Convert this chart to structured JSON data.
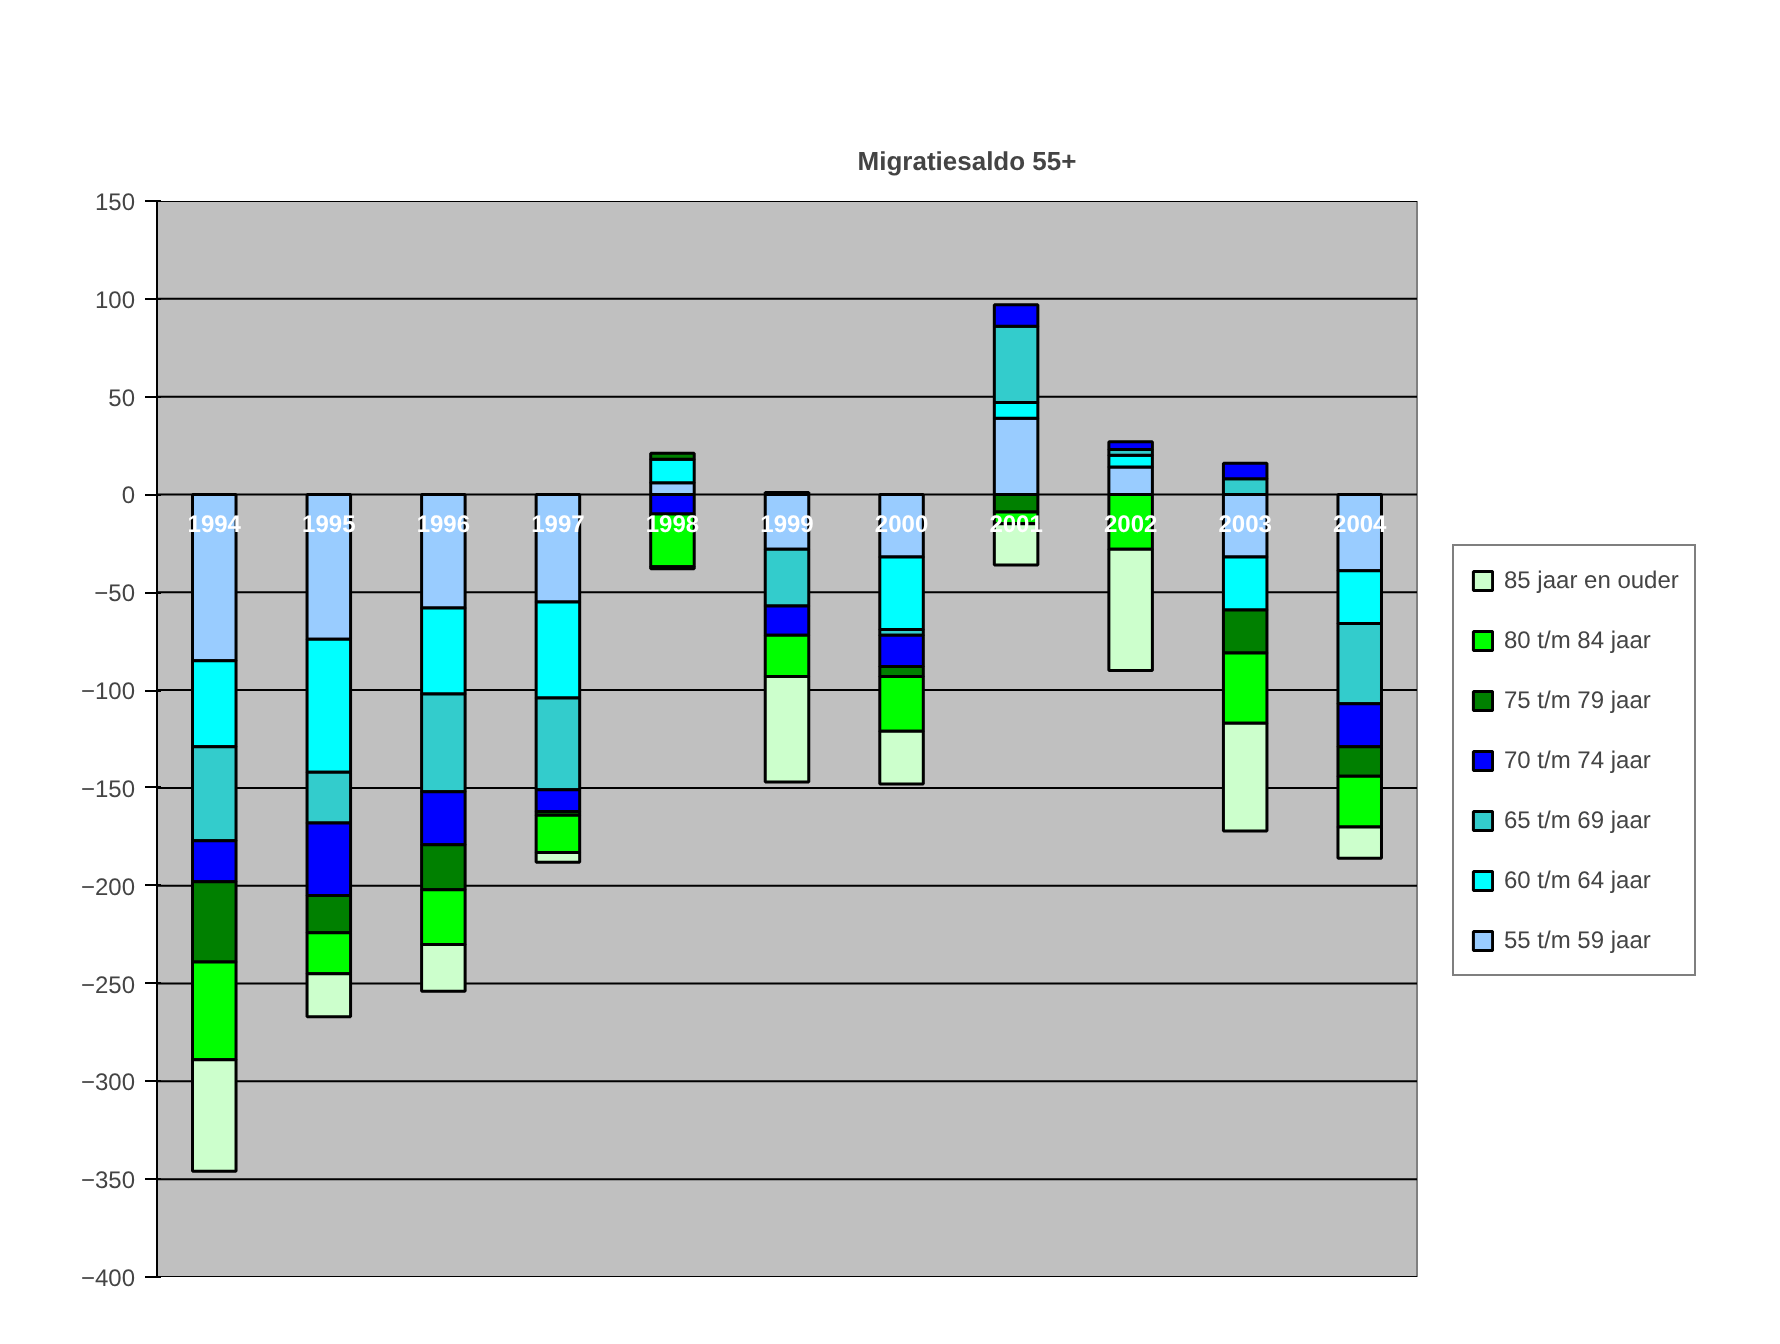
{
  "chart_data": {
    "type": "bar",
    "title": "Migratiesaldo 55+",
    "stacked": true,
    "categories": [
      "1994",
      "1995",
      "1996",
      "1997",
      "1998",
      "1999",
      "2000",
      "2001",
      "2002",
      "2003",
      "2004"
    ],
    "series": [
      {
        "name": "55 t/m 59 jaar",
        "color": "#99ccff",
        "values": [
          -85,
          -74,
          -58,
          -55,
          6,
          -28,
          -32,
          39,
          14,
          -32,
          -39
        ]
      },
      {
        "name": "60 t/m 64 jaar",
        "color": "#00ffff",
        "values": [
          -44,
          -68,
          -44,
          -49,
          12,
          1,
          -37,
          8,
          6,
          -27,
          -27
        ]
      },
      {
        "name": "65 t/m 69 jaar",
        "color": "#33cccc",
        "values": [
          -48,
          -26,
          -50,
          -47,
          null,
          -29,
          -3,
          39,
          3,
          8,
          -41
        ]
      },
      {
        "name": "70 t/m 74 jaar",
        "color": "#0000ff",
        "values": [
          -21,
          -37,
          -27,
          -11,
          -10,
          -15,
          -16,
          11,
          4,
          8,
          -22
        ]
      },
      {
        "name": "75 t/m 79 jaar",
        "color": "#008000",
        "values": [
          -41,
          -19,
          -23,
          -2,
          3,
          0,
          -5,
          -9,
          0,
          -22,
          -15
        ]
      },
      {
        "name": "80 t/m 84 jaar",
        "color": "#00ff00",
        "values": [
          -50,
          -21,
          -28,
          -19,
          -27,
          -21,
          -28,
          -6,
          -28,
          -36,
          -26
        ]
      },
      {
        "name": "85 jaar en ouder",
        "color": "#ccffcc",
        "values": [
          -57,
          -22,
          -24,
          -5,
          -1,
          -54,
          -27,
          -21,
          -62,
          -55,
          -16
        ]
      }
    ],
    "ylim": [
      -400,
      150
    ],
    "yticks": [
      -400,
      -350,
      -300,
      -250,
      -200,
      -150,
      -100,
      -50,
      0,
      50,
      100,
      150
    ],
    "grid": "y",
    "legend": "right"
  }
}
